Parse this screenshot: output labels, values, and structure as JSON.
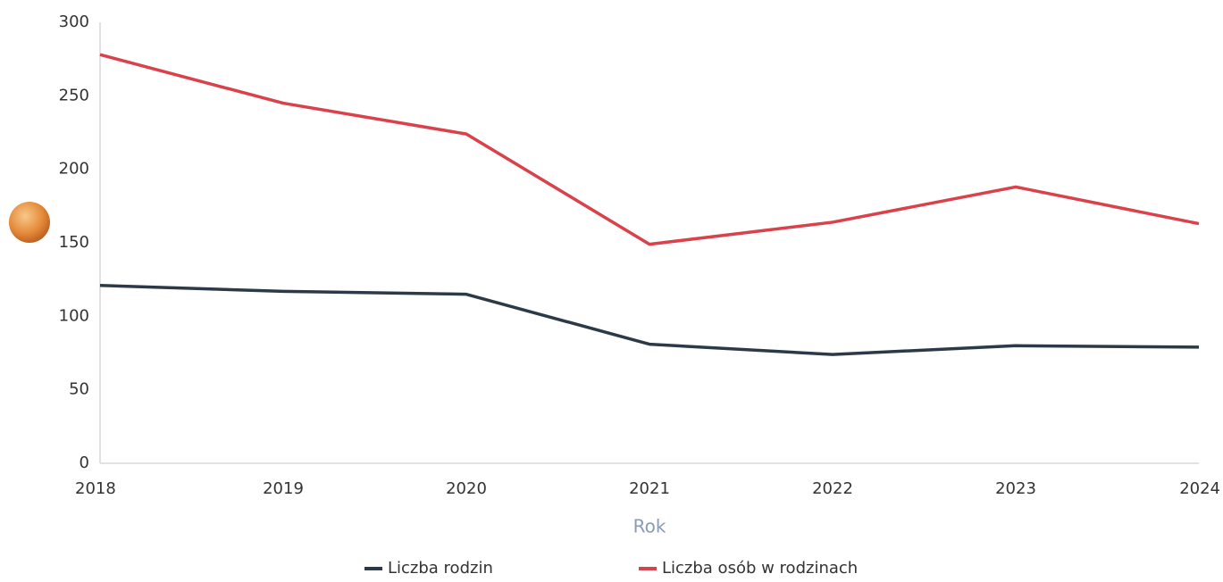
{
  "chart_data": {
    "type": "line",
    "x_label": "Rok",
    "x": [
      2018,
      2019,
      2020,
      2021,
      2022,
      2023,
      2024
    ],
    "xlim": [
      2018,
      2024
    ],
    "xticks": [
      2018,
      2019,
      2020,
      2021,
      2022,
      2023,
      2024
    ],
    "ylim": [
      0,
      300
    ],
    "yticks": [
      0,
      50,
      100,
      150,
      200,
      250,
      300
    ],
    "grid": false,
    "legend": "bottom",
    "series": [
      {
        "name": "Liczba rodzin",
        "color": "#2b3a46",
        "values": [
          121,
          117,
          115,
          81,
          74,
          80,
          79
        ]
      },
      {
        "name": "Liczba osób w rodzinach",
        "color": "#d9424a",
        "values": [
          278,
          245,
          224,
          149,
          164,
          188,
          163
        ]
      }
    ]
  }
}
